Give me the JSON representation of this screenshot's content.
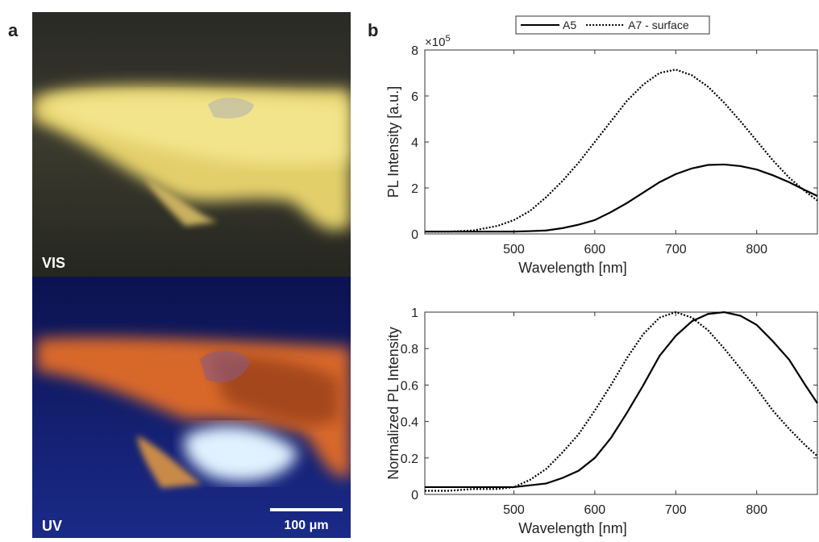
{
  "figure": {
    "panel_a": "a",
    "panel_b": "b",
    "vis_label": "VIS",
    "uv_label": "UV",
    "scale_bar": "100 μm",
    "multiplier": {
      "base": "×10",
      "exponent": "5"
    }
  },
  "chart_data": [
    {
      "type": "line",
      "xlabel": "Wavelength [nm]",
      "ylabel": "PL Intensity [a.u.]",
      "x": [
        390,
        420,
        450,
        480,
        500,
        520,
        540,
        560,
        580,
        600,
        620,
        640,
        660,
        680,
        700,
        720,
        740,
        760,
        780,
        800,
        820,
        840,
        860,
        875
      ],
      "series": [
        {
          "name": "A5",
          "color": "#000000",
          "style": "solid",
          "values": [
            0.1,
            0.1,
            0.1,
            0.1,
            0.1,
            0.12,
            0.15,
            0.25,
            0.4,
            0.6,
            0.95,
            1.35,
            1.8,
            2.25,
            2.6,
            2.85,
            3.0,
            3.02,
            2.95,
            2.8,
            2.55,
            2.25,
            1.9,
            1.65
          ]
        },
        {
          "name": "A7 - surface",
          "color": "#000000",
          "style": "dotted",
          "values": [
            0.1,
            0.1,
            0.15,
            0.35,
            0.6,
            1.0,
            1.6,
            2.3,
            3.1,
            4.0,
            4.9,
            5.8,
            6.5,
            7.0,
            7.15,
            6.9,
            6.4,
            5.7,
            4.9,
            4.05,
            3.2,
            2.45,
            1.85,
            1.45
          ]
        }
      ],
      "xlim": [
        390,
        875
      ],
      "xticks": [
        500,
        600,
        700,
        800
      ],
      "ylim": [
        0,
        8
      ],
      "yticks": [
        0,
        2,
        4,
        6,
        8
      ]
    },
    {
      "type": "line",
      "xlabel": "Wavelength [nm]",
      "ylabel": "Normalized PL Intensity",
      "x": [
        390,
        420,
        450,
        480,
        500,
        520,
        540,
        560,
        580,
        600,
        620,
        640,
        660,
        680,
        700,
        720,
        740,
        760,
        780,
        800,
        820,
        840,
        860,
        875
      ],
      "series": [
        {
          "name": "A5",
          "color": "#000000",
          "style": "solid",
          "values": [
            0.04,
            0.04,
            0.04,
            0.04,
            0.04,
            0.05,
            0.06,
            0.09,
            0.13,
            0.2,
            0.31,
            0.45,
            0.6,
            0.76,
            0.87,
            0.95,
            0.99,
            1.0,
            0.98,
            0.93,
            0.84,
            0.74,
            0.6,
            0.5
          ]
        },
        {
          "name": "A7 - surface",
          "color": "#000000",
          "style": "dotted",
          "values": [
            0.02,
            0.02,
            0.03,
            0.03,
            0.04,
            0.08,
            0.14,
            0.23,
            0.33,
            0.46,
            0.6,
            0.75,
            0.88,
            0.97,
            1.0,
            0.97,
            0.9,
            0.8,
            0.69,
            0.58,
            0.46,
            0.36,
            0.27,
            0.21
          ]
        }
      ],
      "xlim": [
        390,
        875
      ],
      "xticks": [
        500,
        600,
        700,
        800
      ],
      "ylim": [
        0,
        1
      ],
      "yticks": [
        0,
        0.2,
        0.4,
        0.6,
        0.8,
        1
      ]
    }
  ]
}
